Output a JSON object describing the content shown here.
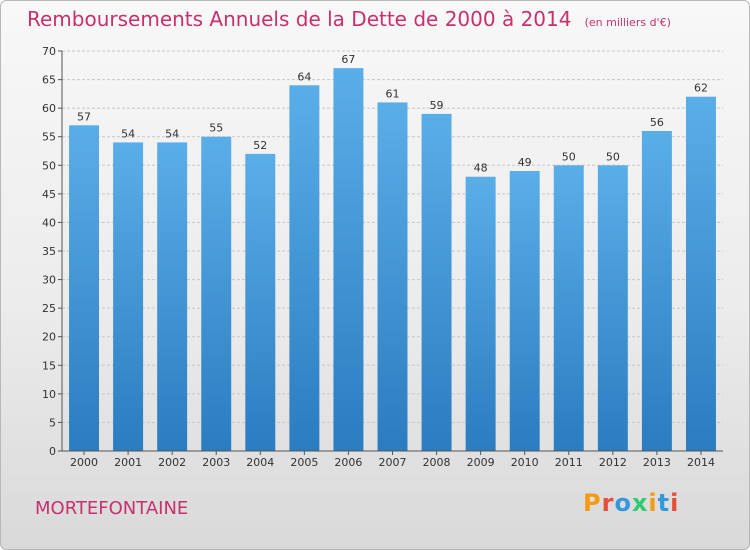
{
  "header": {
    "title": "Remboursements Annuels de la Dette de 2000 à 2014",
    "unit": "(en milliers d'€)"
  },
  "footer": {
    "commune": "MORTEFONTAINE",
    "logo_text": "Proxiti"
  },
  "colors": {
    "accent": "#c8306e",
    "bar_top": "#5aaee8",
    "bar_bottom": "#2b7cc0"
  },
  "chart_data": {
    "type": "bar",
    "categories": [
      "2000",
      "2001",
      "2002",
      "2003",
      "2004",
      "2005",
      "2006",
      "2007",
      "2008",
      "2009",
      "2010",
      "2011",
      "2012",
      "2013",
      "2014"
    ],
    "values": [
      57,
      54,
      54,
      55,
      52,
      64,
      67,
      61,
      59,
      48,
      49,
      50,
      50,
      56,
      62
    ],
    "title": "Remboursements Annuels de la Dette de 2000 à 2014",
    "xlabel": "",
    "ylabel": "",
    "ylim": [
      0,
      70
    ],
    "yticks": [
      0,
      5,
      10,
      15,
      20,
      25,
      30,
      35,
      40,
      45,
      50,
      55,
      60,
      65,
      70
    ],
    "grid": true,
    "legend": "none"
  }
}
